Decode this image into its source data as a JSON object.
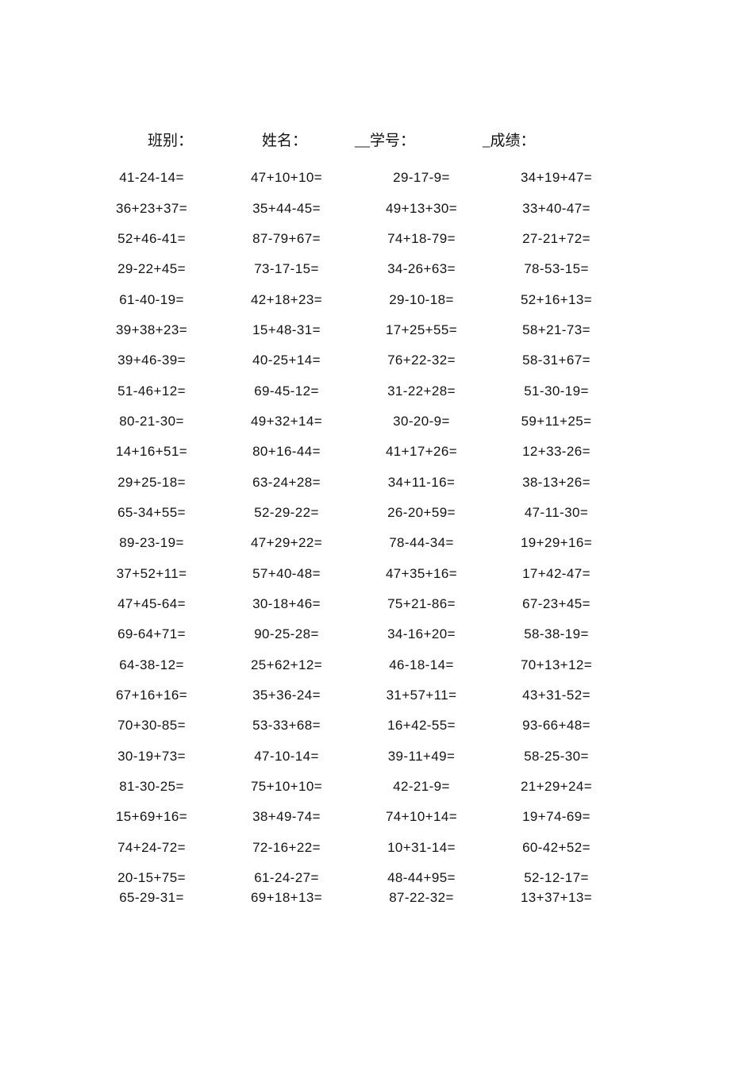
{
  "document": {
    "background_color": "#ffffff",
    "text_color": "#141414",
    "type": "arithmetic-practice-worksheet"
  },
  "header": {
    "fields": [
      {
        "label": "班别："
      },
      {
        "label": "姓名："
      },
      {
        "label": "__学号："
      },
      {
        "label": "_成绩："
      }
    ]
  },
  "worksheet": {
    "columns": 4,
    "row_count": 25,
    "rows": [
      [
        "41-24-14=",
        "47+10+10=",
        "29-17-9=",
        "34+19+47="
      ],
      [
        "36+23+37=",
        "35+44-45=",
        "49+13+30=",
        "33+40-47="
      ],
      [
        "52+46-41=",
        "87-79+67=",
        "74+18-79=",
        "27-21+72="
      ],
      [
        "29-22+45=",
        "73-17-15=",
        "34-26+63=",
        "78-53-15="
      ],
      [
        "61-40-19=",
        "42+18+23=",
        "29-10-18=",
        "52+16+13="
      ],
      [
        "39+38+23=",
        "15+48-31=",
        "17+25+55=",
        "58+21-73="
      ],
      [
        "39+46-39=",
        "40-25+14=",
        "76+22-32=",
        "58-31+67="
      ],
      [
        "51-46+12=",
        "69-45-12=",
        "31-22+28=",
        "51-30-19="
      ],
      [
        "80-21-30=",
        "49+32+14=",
        "30-20-9=",
        "59+11+25="
      ],
      [
        "14+16+51=",
        "80+16-44=",
        "41+17+26=",
        "12+33-26="
      ],
      [
        "29+25-18=",
        "63-24+28=",
        "34+11-16=",
        "38-13+26="
      ],
      [
        "65-34+55=",
        "52-29-22=",
        "26-20+59=",
        "47-11-30="
      ],
      [
        "89-23-19=",
        "47+29+22=",
        "78-44-34=",
        "19+29+16="
      ],
      [
        "37+52+11=",
        "57+40-48=",
        "47+35+16=",
        "17+42-47="
      ],
      [
        "47+45-64=",
        "30-18+46=",
        "75+21-86=",
        "67-23+45="
      ],
      [
        "69-64+71=",
        "90-25-28=",
        "34-16+20=",
        "58-38-19="
      ],
      [
        "64-38-12=",
        "25+62+12=",
        "46-18-14=",
        "70+13+12="
      ],
      [
        "67+16+16=",
        "35+36-24=",
        "31+57+11=",
        "43+31-52="
      ],
      [
        "70+30-85=",
        "53-33+68=",
        "16+42-55=",
        "93-66+48="
      ],
      [
        "30-19+73=",
        "47-10-14=",
        "39-11+49=",
        "58-25-30="
      ],
      [
        "81-30-25=",
        "75+10+10=",
        "42-21-9=",
        "21+29+24="
      ],
      [
        "15+69+16=",
        "38+49-74=",
        "74+10+14=",
        "19+74-69="
      ],
      [
        "74+24-72=",
        "72-16+22=",
        "10+31-14=",
        "60-42+52="
      ],
      [
        "20-15+75=",
        "61-24-27=",
        "48-44+95=",
        "52-12-17="
      ],
      [
        "65-29-31=",
        "69+18+13=",
        "87-22-32=",
        "13+37+13="
      ]
    ]
  }
}
